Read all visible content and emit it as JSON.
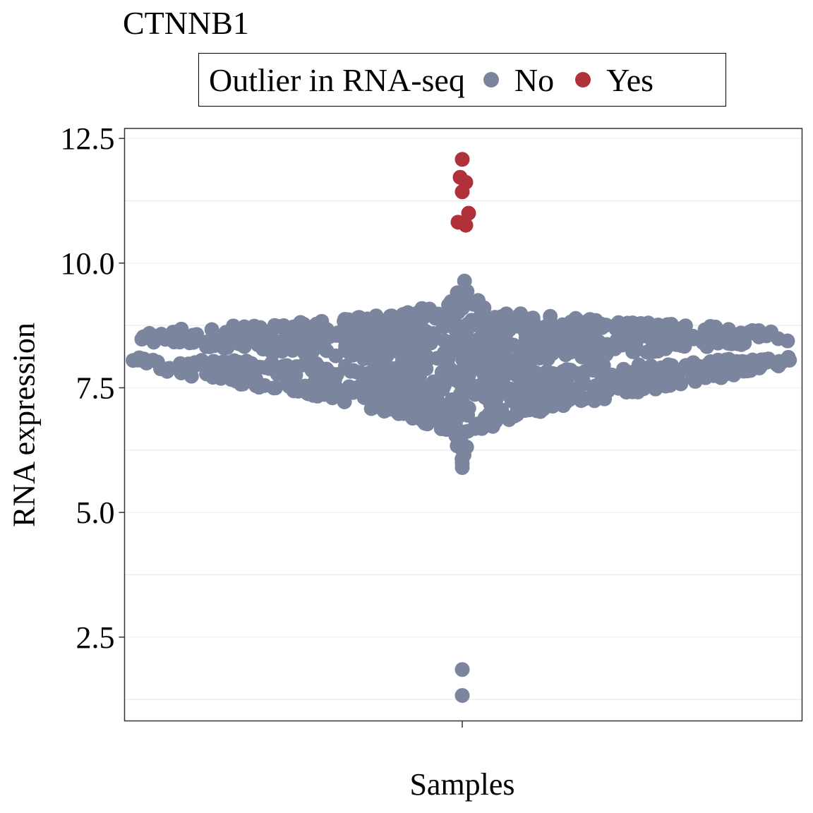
{
  "chart_data": {
    "type": "scatter",
    "subtype": "beeswarm",
    "title": "CTNNB1",
    "xlabel": "Samples",
    "ylabel": "RNA expression",
    "ylim": [
      0.82,
      12.7
    ],
    "yticks": [
      "2.5",
      "5.0",
      "7.5",
      "10.0",
      "12.5"
    ],
    "grid": "horizontal",
    "legend": {
      "title": "Outlier in RNA-seq",
      "position": "top",
      "entries": [
        {
          "label": "No",
          "color": "#7b859d"
        },
        {
          "label": "Yes",
          "color": "#b0313a"
        }
      ]
    },
    "series": [
      {
        "name": "No",
        "color": "#7b859d",
        "distribution": {
          "center": 7.9,
          "spread": 0.55,
          "min": 5.9,
          "max": 10.4,
          "count_estimate": 1100
        },
        "low_points": [
          1.85,
          1.33,
          5.9
        ]
      },
      {
        "name": "Yes",
        "color": "#b0313a",
        "points": [
          12.08,
          11.72,
          11.62,
          11.43,
          11.0,
          10.82,
          10.76
        ]
      }
    ]
  }
}
